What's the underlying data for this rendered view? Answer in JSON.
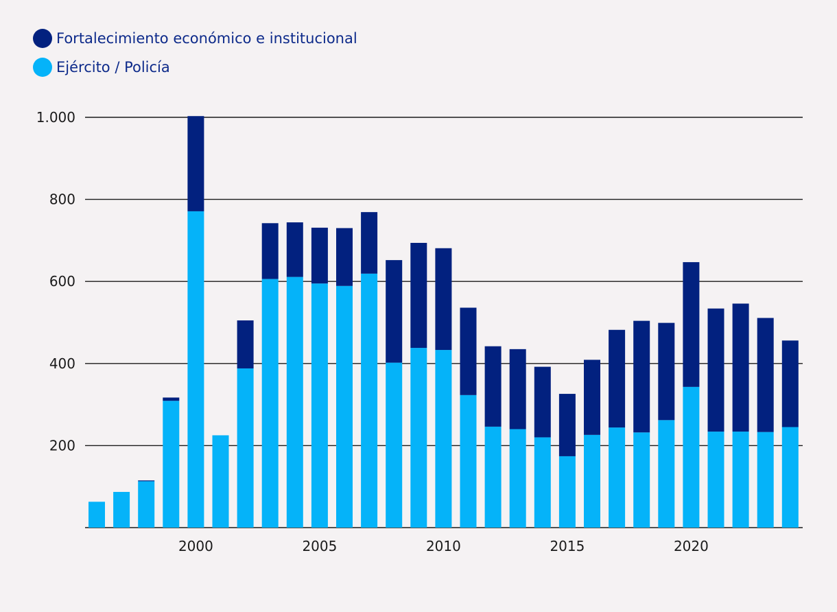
{
  "chart_data": {
    "type": "bar",
    "stacked": true,
    "title": "",
    "xlabel": "",
    "ylabel": "",
    "ylim": [
      0,
      1000
    ],
    "yticks": [
      200,
      400,
      600,
      800,
      1000
    ],
    "ytick_labels": [
      "200",
      "400",
      "600",
      "800",
      "1.000"
    ],
    "xticks": [
      2000,
      2005,
      2010,
      2015,
      2020
    ],
    "xtick_labels": [
      "2000",
      "2005",
      "2010",
      "2015",
      "2020"
    ],
    "grid": "horizontal",
    "legend_position": "top-left",
    "categories": [
      1996,
      1997,
      1998,
      1999,
      2000,
      2001,
      2002,
      2003,
      2004,
      2005,
      2006,
      2007,
      2008,
      2009,
      2010,
      2011,
      2012,
      2013,
      2014,
      2015,
      2016,
      2017,
      2018,
      2019,
      2020,
      2021,
      2022,
      2023,
      2024
    ],
    "series": [
      {
        "name": "Ejército / Policía",
        "color": "#05b3f9",
        "values": [
          63,
          87,
          113,
          309,
          771,
          225,
          388,
          606,
          611,
          595,
          589,
          619,
          402,
          438,
          433,
          323,
          246,
          240,
          220,
          174,
          226,
          244,
          232,
          262,
          343,
          234,
          234,
          233,
          245
        ]
      },
      {
        "name": "Fortalecimiento económico e institucional",
        "color": "#02217f",
        "values": [
          0,
          0,
          2,
          8,
          232,
          0,
          117,
          136,
          133,
          136,
          141,
          150,
          250,
          256,
          248,
          213,
          196,
          195,
          172,
          152,
          183,
          238,
          272,
          237,
          304,
          300,
          312,
          278,
          211
        ]
      }
    ]
  }
}
